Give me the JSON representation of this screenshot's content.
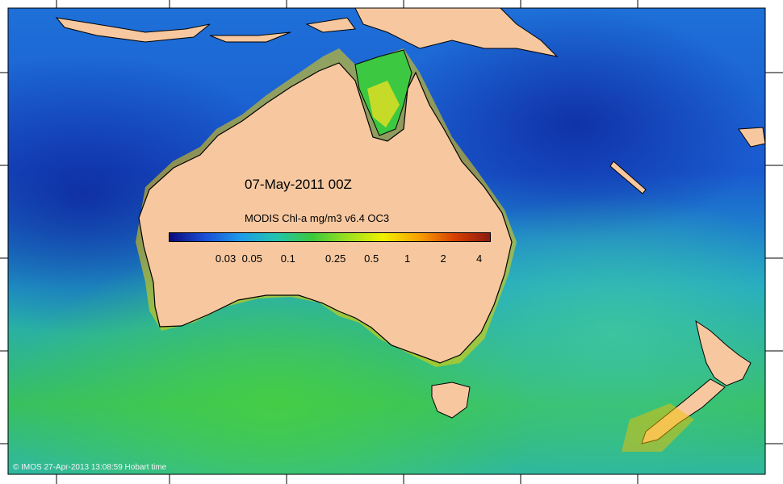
{
  "map": {
    "date_label": "07-May-2011 00Z",
    "legend": {
      "title": "MODIS Chl-a mg/m3 v6.4 OC3",
      "ticks": [
        {
          "label": "0.03",
          "value": 0.03
        },
        {
          "label": "0.05",
          "value": 0.05
        },
        {
          "label": "0.1",
          "value": 0.1
        },
        {
          "label": "0.25",
          "value": 0.25
        },
        {
          "label": "0.5",
          "value": 0.5
        },
        {
          "label": "1",
          "value": 1
        },
        {
          "label": "2",
          "value": 2
        },
        {
          "label": "4",
          "value": 4
        }
      ],
      "range": [
        0.01,
        5
      ],
      "scale": "log",
      "colormap": [
        "#0a0a7a",
        "#1a4fd8",
        "#1e9be8",
        "#22c4b0",
        "#3cc83c",
        "#9ce020",
        "#f0f000",
        "#f8a000",
        "#d84000",
        "#8c1a10"
      ]
    },
    "credit": "© IMOS 27-Apr-2013 13:08:59 Hobart time",
    "colors": {
      "land": "#f7c8a0",
      "ocean_deep": "#1848c8",
      "ocean_mid": "#2aa0e0",
      "coastal_high": "#d04010"
    }
  }
}
